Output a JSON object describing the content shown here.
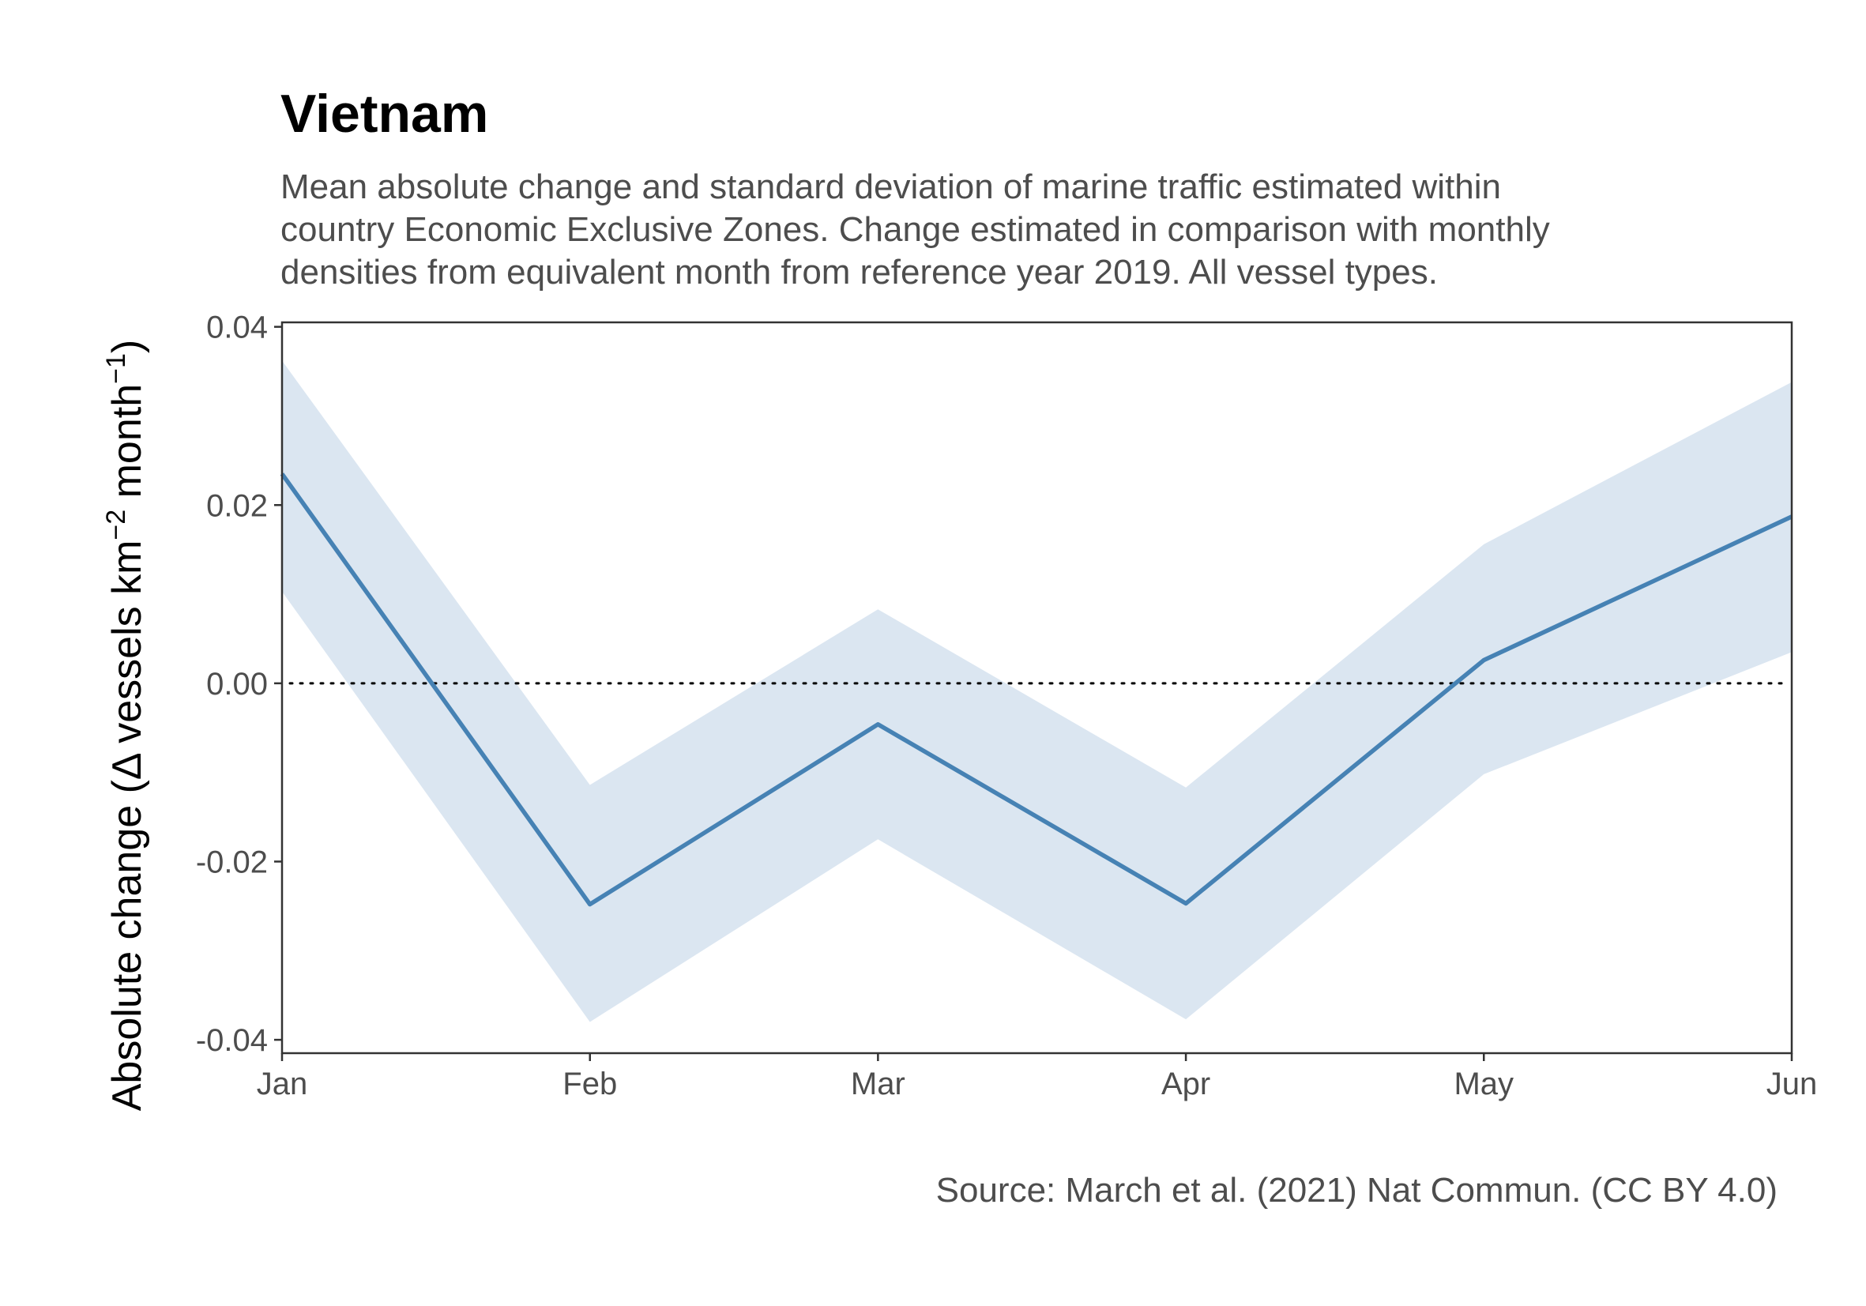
{
  "chart_data": {
    "type": "line",
    "title": "Vietnam",
    "subtitle_lines": [
      "Mean absolute change and standard deviation of marine traffic estimated within",
      "country Economic Exclusive Zones. Change estimated in comparison with monthly",
      "densities from equivalent month from reference year 2019. All vessel types."
    ],
    "caption": "Source: March et al. (2021) Nat Commun. (CC BY 4.0)",
    "xlabel": "",
    "ylabel": {
      "prefix": "Absolute change (",
      "delta": "Δ",
      "mid": " vessels km",
      "sup1": "−2",
      "mid2": " month",
      "sup2": "−1",
      "suffix": ")"
    },
    "categories": [
      "Jan",
      "Feb",
      "Mar",
      "Apr",
      "May",
      "Jun"
    ],
    "x_days": [
      0,
      31,
      60,
      91,
      121,
      152
    ],
    "series": [
      {
        "values": [
          0.0235,
          -0.0248,
          -0.0046,
          -0.0247,
          0.0026,
          0.0187
        ],
        "upper": [
          0.0362,
          -0.0114,
          0.0083,
          -0.0117,
          0.0156,
          0.0338
        ],
        "lower": [
          0.0103,
          -0.038,
          -0.0175,
          -0.0377,
          -0.0102,
          0.0035
        ],
        "color": "#4682b4",
        "band_color": "#dbe6f1"
      }
    ],
    "ylim": [
      -0.0415,
      0.0405
    ],
    "yticks": [
      -0.04,
      -0.02,
      0.0,
      0.02,
      0.04
    ],
    "ytick_labels": [
      "-0.04",
      "-0.02",
      "0.00",
      "0.02",
      "0.04"
    ],
    "reference_line": {
      "y": 0,
      "style": "dotted"
    },
    "grid": false,
    "legend": "none"
  }
}
